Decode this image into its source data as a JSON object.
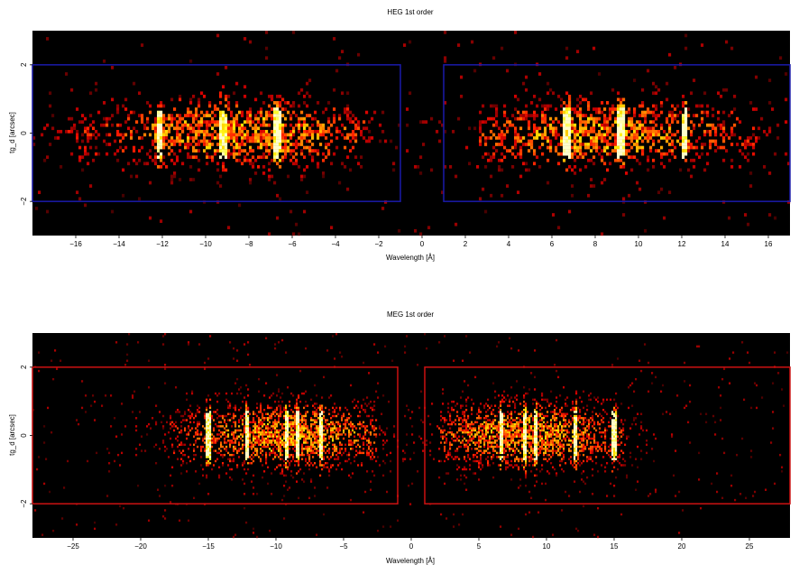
{
  "chart_data": [
    {
      "type": "heatmap",
      "title": "HEG 1st order",
      "xlabel": "Wavelength [Å]",
      "ylabel": "tg_d [arcsec]",
      "xlim": [
        -18,
        17
      ],
      "ylim": [
        -3,
        3
      ],
      "x_ticks": [
        -16,
        -14,
        -12,
        -10,
        -8,
        -6,
        -4,
        -2,
        0,
        2,
        4,
        6,
        8,
        10,
        12,
        14,
        16
      ],
      "y_ticks": [
        -2,
        0,
        2
      ],
      "background_color": "#000000",
      "colormap": "hot",
      "extraction_box_color": "#1a1aaa",
      "extraction_regions": [
        {
          "x": [
            -18,
            -1
          ],
          "y": [
            -2,
            2
          ]
        },
        {
          "x": [
            1,
            17
          ],
          "y": [
            -2,
            2
          ]
        }
      ],
      "emission_lines": [
        -12.1,
        -9.2,
        -6.7,
        6.7,
        9.2,
        12.1
      ],
      "source_extent": [
        {
          "x": [
            -16.5,
            -2.5
          ],
          "center": -8.5,
          "width": 3.5
        },
        {
          "x": [
            2.5,
            15.5
          ],
          "center": 8.5,
          "width": 3.5
        }
      ],
      "seed": 11
    },
    {
      "type": "heatmap",
      "title": "MEG 1st order",
      "xlabel": "Wavelength [Å]",
      "ylabel": "tg_d [arcsec]",
      "xlim": [
        -28,
        28
      ],
      "ylim": [
        -3,
        3
      ],
      "x_ticks": [
        -25,
        -20,
        -15,
        -10,
        -5,
        0,
        5,
        10,
        15,
        20,
        25
      ],
      "y_ticks": [
        -2,
        0,
        2
      ],
      "background_color": "#000000",
      "colormap": "hot",
      "extraction_box_color": "#cc1111",
      "extraction_regions": [
        {
          "x": [
            -28,
            -1
          ],
          "y": [
            -2,
            2
          ]
        },
        {
          "x": [
            1,
            28
          ],
          "y": [
            -2,
            2
          ]
        }
      ],
      "emission_lines": [
        -15.0,
        -12.1,
        -9.2,
        -8.4,
        -6.7,
        6.7,
        8.4,
        9.2,
        12.1,
        15.0
      ],
      "source_extent": [
        {
          "x": [
            -18,
            -2.5
          ],
          "center": -9,
          "width": 4.5
        },
        {
          "x": [
            2,
            16
          ],
          "center": 8.5,
          "width": 4.0
        }
      ],
      "seed": 29
    }
  ]
}
